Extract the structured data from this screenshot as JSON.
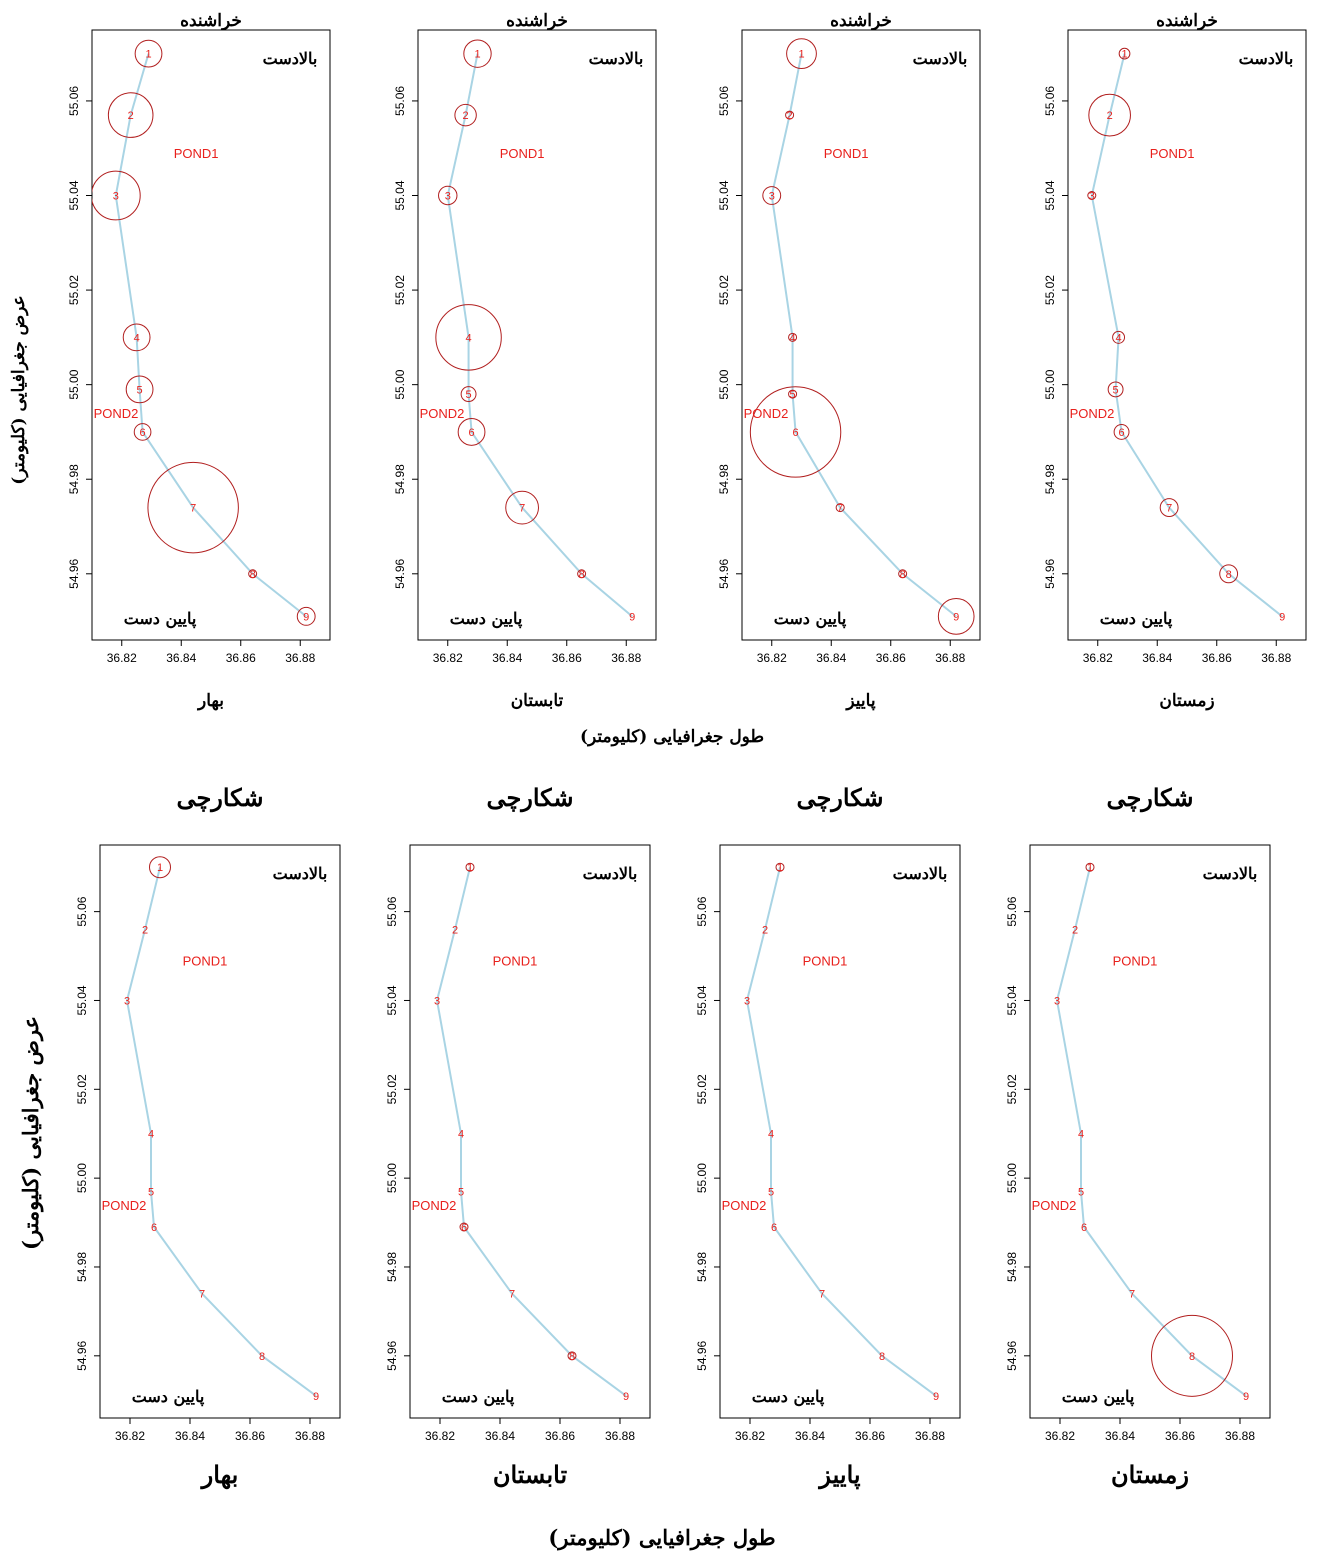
{
  "colors": {
    "track": "#a9d4e4",
    "circle": "#b11f1f",
    "label": "#e8201c",
    "axis": "#000000"
  },
  "groups": [
    {
      "title": "خراشنده",
      "xlabel": "طول جغرافیایی (کلیومتر)",
      "ylabel": "عرض جغرافیایی (کلیومتر)"
    },
    {
      "title": "شکارچی",
      "xlabel": "طول جغرافیایی (کلیومتر)",
      "ylabel": "عرض جغرافیایی (کلیومتر)"
    }
  ],
  "annotations": {
    "upstream": "بالادست",
    "downstream": "پایین دست",
    "pond1": "POND1",
    "pond2": "POND2"
  },
  "chart_data": [
    {
      "type": "scatter",
      "group": 0,
      "title": "خراشنده",
      "season": "بهار",
      "x": [
        36.829,
        36.823,
        36.818,
        36.825,
        36.826,
        36.827,
        36.844,
        36.864,
        36.882
      ],
      "y": [
        55.07,
        55.057,
        55.04,
        55.01,
        54.999,
        54.99,
        54.974,
        54.96,
        54.951
      ],
      "point_labels": [
        "1",
        "2",
        "3",
        "4",
        "5",
        "6",
        "7",
        "8",
        "9"
      ],
      "radius": [
        0.0045,
        0.0075,
        0.0082,
        0.0045,
        0.0045,
        0.0028,
        0.0152,
        0.001,
        0.003
      ],
      "xlim": [
        36.81,
        36.89
      ],
      "ylim": [
        54.946,
        55.075
      ],
      "xticks": [
        "36.82",
        "36.84",
        "36.86",
        "36.88"
      ],
      "yticks": [
        "54.96",
        "54.98",
        "55.00",
        "55.02",
        "55.04",
        "55.06"
      ]
    },
    {
      "type": "scatter",
      "group": 0,
      "title": "خراشنده",
      "season": "تابستان",
      "x": [
        36.83,
        36.826,
        36.82,
        36.827,
        36.827,
        36.828,
        36.845,
        36.865,
        36.882
      ],
      "y": [
        55.07,
        55.057,
        55.04,
        55.01,
        54.998,
        54.99,
        54.974,
        54.96,
        54.951
      ],
      "point_labels": [
        "1",
        "2",
        "3",
        "4",
        "5",
        "6",
        "7",
        "8",
        "9"
      ],
      "radius": [
        0.0046,
        0.0036,
        0.0031,
        0.011,
        0.0025,
        0.0045,
        0.0055,
        0.0012,
        0.0
      ],
      "xlim": [
        36.81,
        36.89
      ],
      "ylim": [
        54.946,
        55.075
      ],
      "xticks": [
        "36.82",
        "36.84",
        "36.86",
        "36.88"
      ],
      "yticks": [
        "54.96",
        "54.98",
        "55.00",
        "55.02",
        "55.04",
        "55.06"
      ]
    },
    {
      "type": "scatter",
      "group": 0,
      "title": "خراشنده",
      "season": "پاییز",
      "x": [
        36.83,
        36.826,
        36.82,
        36.827,
        36.827,
        36.828,
        36.843,
        36.864,
        36.882
      ],
      "y": [
        55.07,
        55.057,
        55.04,
        55.01,
        54.998,
        54.99,
        54.974,
        54.96,
        54.951
      ],
      "point_labels": [
        "1",
        "2",
        "3",
        "4",
        "5",
        "6",
        "7",
        "8",
        "9"
      ],
      "radius": [
        0.005,
        0.0008,
        0.003,
        0.0008,
        0.001,
        0.0152,
        0.0011,
        0.001,
        0.006
      ],
      "xlim": [
        36.81,
        36.89
      ],
      "ylim": [
        54.946,
        55.075
      ],
      "xticks": [
        "36.82",
        "36.84",
        "36.86",
        "36.88"
      ],
      "yticks": [
        "54.96",
        "54.98",
        "55.00",
        "55.02",
        "55.04",
        "55.06"
      ]
    },
    {
      "type": "scatter",
      "group": 0,
      "title": "خراشنده",
      "season": "زمستان",
      "x": [
        36.829,
        36.824,
        36.818,
        36.827,
        36.826,
        36.828,
        36.844,
        36.864,
        36.882
      ],
      "y": [
        55.07,
        55.057,
        55.04,
        55.01,
        54.999,
        54.99,
        54.974,
        54.96,
        54.951
      ],
      "point_labels": [
        "1",
        "2",
        "3",
        "4",
        "5",
        "6",
        "7",
        "8",
        "9"
      ],
      "radius": [
        0.0018,
        0.007,
        0.0008,
        0.002,
        0.0025,
        0.0025,
        0.003,
        0.003,
        0.0
      ],
      "xlim": [
        36.81,
        36.89
      ],
      "ylim": [
        54.946,
        55.075
      ],
      "xticks": [
        "36.82",
        "36.84",
        "36.86",
        "36.88"
      ],
      "yticks": [
        "54.96",
        "54.98",
        "55.00",
        "55.02",
        "55.04",
        "55.06"
      ]
    },
    {
      "type": "scatter",
      "group": 1,
      "title": "شکارچی",
      "season": "بهار",
      "x": [
        36.83,
        36.825,
        36.819,
        36.827,
        36.827,
        36.828,
        36.844,
        36.864,
        36.882
      ],
      "y": [
        55.07,
        55.056,
        55.04,
        55.01,
        54.997,
        54.989,
        54.974,
        54.96,
        54.951
      ],
      "point_labels": [
        "1",
        "2",
        "3",
        "4",
        "5",
        "6",
        "7",
        "8",
        "9"
      ],
      "radius": [
        0.0035,
        0.0,
        0.0,
        0.0,
        0.0,
        0.0,
        0.0,
        0.0,
        0.0
      ],
      "xlim": [
        36.81,
        36.89
      ],
      "ylim": [
        54.946,
        55.075
      ],
      "xticks": [
        "36.82",
        "36.84",
        "36.86",
        "36.88"
      ],
      "yticks": [
        "54.96",
        "54.98",
        "55.00",
        "55.02",
        "55.04",
        "55.06"
      ]
    },
    {
      "type": "scatter",
      "group": 1,
      "title": "شکارچی",
      "season": "تابستان",
      "x": [
        36.83,
        36.825,
        36.819,
        36.827,
        36.827,
        36.828,
        36.844,
        36.864,
        36.882
      ],
      "y": [
        55.07,
        55.056,
        55.04,
        55.01,
        54.997,
        54.989,
        54.974,
        54.96,
        54.951
      ],
      "point_labels": [
        "1",
        "2",
        "3",
        "4",
        "5",
        "6",
        "7",
        "8",
        "9"
      ],
      "radius": [
        0.0012,
        0.0,
        0.0,
        0.0,
        0.0,
        0.0007,
        0.0,
        0.0007,
        0.0
      ],
      "xlim": [
        36.81,
        36.89
      ],
      "ylim": [
        54.946,
        55.075
      ],
      "xticks": [
        "36.82",
        "36.84",
        "36.86",
        "36.88"
      ],
      "yticks": [
        "54.96",
        "54.98",
        "55.00",
        "55.02",
        "55.04",
        "55.06"
      ]
    },
    {
      "type": "scatter",
      "group": 1,
      "title": "شکارچی",
      "season": "پاییز",
      "x": [
        36.83,
        36.825,
        36.819,
        36.827,
        36.827,
        36.828,
        36.844,
        36.864,
        36.882
      ],
      "y": [
        55.07,
        55.056,
        55.04,
        55.01,
        54.997,
        54.989,
        54.974,
        54.96,
        54.951
      ],
      "point_labels": [
        "1",
        "2",
        "3",
        "4",
        "5",
        "6",
        "7",
        "8",
        "9"
      ],
      "radius": [
        0.0006,
        0.0,
        0.0,
        0.0,
        0.0,
        0.0,
        0.0,
        0.0,
        0.0
      ],
      "xlim": [
        36.81,
        36.89
      ],
      "ylim": [
        54.946,
        55.075
      ],
      "xticks": [
        "36.82",
        "36.84",
        "36.86",
        "36.88"
      ],
      "yticks": [
        "54.96",
        "54.98",
        "55.00",
        "55.02",
        "55.04",
        "55.06"
      ]
    },
    {
      "type": "scatter",
      "group": 1,
      "title": "شکارچی",
      "season": "زمستان",
      "x": [
        36.83,
        36.825,
        36.819,
        36.827,
        36.827,
        36.828,
        36.844,
        36.864,
        36.882
      ],
      "y": [
        55.07,
        55.056,
        55.04,
        55.01,
        54.997,
        54.989,
        54.974,
        54.96,
        54.951
      ],
      "point_labels": [
        "1",
        "2",
        "3",
        "4",
        "5",
        "6",
        "7",
        "8",
        "9"
      ],
      "radius": [
        0.0006,
        0.0,
        0.0,
        0.0,
        0.0,
        0.0,
        0.0,
        0.0135,
        0.0
      ],
      "xlim": [
        36.81,
        36.89
      ],
      "ylim": [
        54.946,
        55.075
      ],
      "xticks": [
        "36.82",
        "36.84",
        "36.86",
        "36.88"
      ],
      "yticks": [
        "54.96",
        "54.98",
        "55.00",
        "55.02",
        "55.04",
        "55.06"
      ]
    }
  ]
}
